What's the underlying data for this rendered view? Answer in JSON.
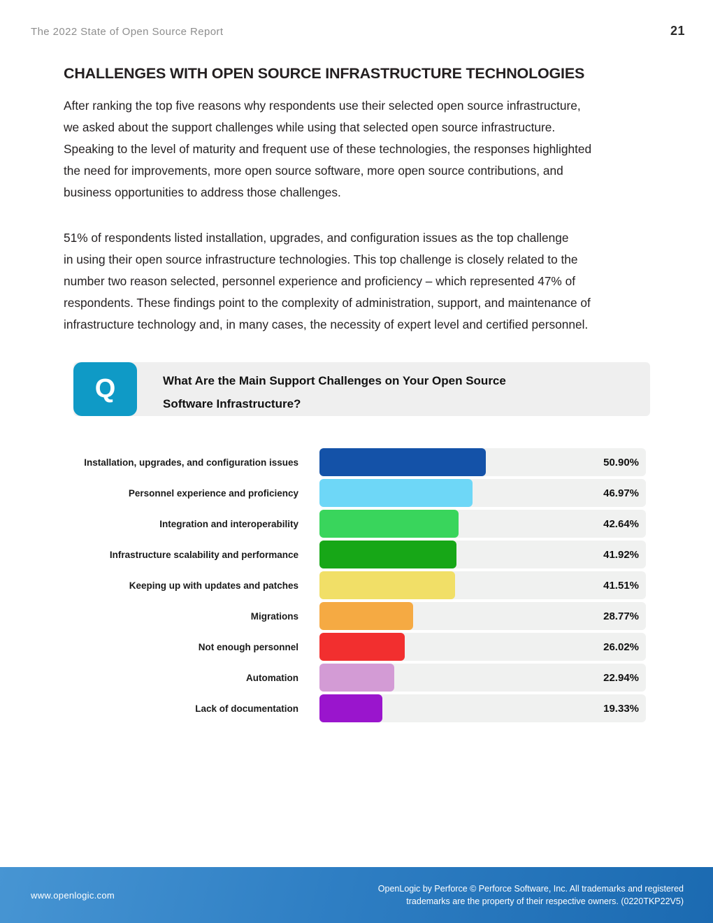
{
  "header": {
    "title": "The 2022 State of Open Source Report",
    "page_number": "21"
  },
  "article": {
    "heading": "CHALLENGES WITH OPEN SOURCE INFRASTRUCTURE TECHNOLOGIES",
    "paragraphs": [
      [
        "After ranking the top five reasons why respondents use their selected open source infrastructure,",
        "we asked about the support challenges while using that selected open source infrastructure.",
        "Speaking to the level of maturity and frequent use of these technologies, the responses highlighted",
        "the need for improvements, more open source software, more open source contributions, and",
        "business opportunities to address those challenges."
      ],
      [
        "51% of respondents listed installation, upgrades, and configuration issues as the top challenge",
        "in using their open source infrastructure technologies. This top challenge is closely related to the",
        "number two reason selected, personnel experience and proficiency – which represented 47% of",
        "respondents. These findings point to the complexity of administration, support, and maintenance of",
        "infrastructure technology and, in many cases, the necessity of expert level and certified personnel."
      ]
    ]
  },
  "question": {
    "icon_label": "Q",
    "lines": [
      "What Are the Main Support Challenges on Your Open Source",
      "Software Infrastructure?"
    ]
  },
  "chart_data": {
    "type": "bar",
    "orientation": "horizontal",
    "title": "What Are the Main Support Challenges on Your Open Source Software Infrastructure?",
    "categories": [
      "Installation, upgrades, and configuration issues",
      "Personnel experience and proficiency",
      "Integration and interoperability",
      "Infrastructure scalability and performance",
      "Keeping up with updates and patches",
      "Migrations",
      "Not enough personnel",
      "Automation",
      "Lack of documentation"
    ],
    "values": [
      50.9,
      46.97,
      42.64,
      41.92,
      41.51,
      28.77,
      26.02,
      22.94,
      19.33
    ],
    "value_labels": [
      "50.90%",
      "46.97%",
      "42.64%",
      "41.92%",
      "41.51%",
      "28.77%",
      "26.02%",
      "22.94%",
      "19.33%"
    ],
    "colors": [
      "#1452a8",
      "#6ed7f7",
      "#39d55c",
      "#17a717",
      "#f1df67",
      "#f5aa43",
      "#f22f2f",
      "#d39bd5",
      "#9a15cd"
    ],
    "track_color": "#f0f1f0",
    "xlim": [
      0,
      100
    ],
    "grid": false,
    "legend": "none"
  },
  "footer": {
    "website": "www.openlogic.com",
    "legal_lines": [
      "OpenLogic by Perforce © Perforce Software, Inc. All trademarks and registered",
      "trademarks are the property of their respective owners. (0220TKP22V5)"
    ],
    "gradient": [
      "#4795d3",
      "#1b6ab1"
    ]
  },
  "colors": {
    "accent_question_badge": "#0f9ac6",
    "question_panel": "#efefef",
    "header_text": "#8e8e8e",
    "body_text": "#231f20"
  }
}
